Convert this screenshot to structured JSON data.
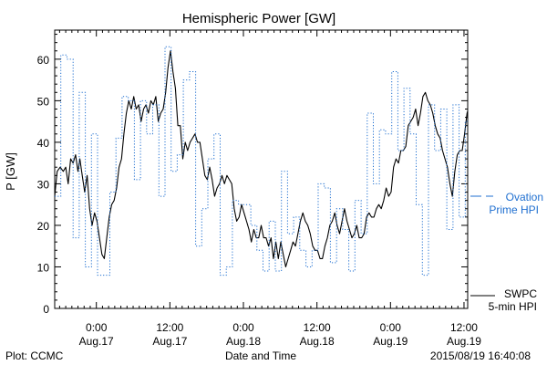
{
  "chart_data": {
    "type": "line",
    "title": "Hemispheric Power [GW]",
    "xlabel": "Date and Time",
    "ylabel": "P [GW]",
    "ylim": [
      0,
      67
    ],
    "xlim": [
      -6.8,
      60.6
    ],
    "x_unit": "hours from 2015/08/17 00:00",
    "grid": false,
    "y_ticks": [
      0,
      10,
      20,
      30,
      40,
      50,
      60
    ],
    "x_ticks": [
      {
        "x": 0,
        "time": "0:00",
        "date": "Aug.17"
      },
      {
        "x": 12,
        "time": "12:00",
        "date": "Aug.17"
      },
      {
        "x": 24,
        "time": "0:00",
        "date": "Aug.18"
      },
      {
        "x": 36,
        "time": "12:00",
        "date": "Aug.18"
      },
      {
        "x": 48,
        "time": "0:00",
        "date": "Aug.19"
      },
      {
        "x": 60,
        "time": "12:00",
        "date": "Aug.19"
      }
    ],
    "series": [
      {
        "name": "SWPC 5-min HPI",
        "label_lines": [
          "SWPC",
          "5-min HPI"
        ],
        "color": "#000000",
        "style": "solid",
        "points": [
          [
            -6.8,
            27
          ],
          [
            -6.4,
            33
          ],
          [
            -5.9,
            34
          ],
          [
            -5.4,
            33
          ],
          [
            -5.0,
            34
          ],
          [
            -4.6,
            30
          ],
          [
            -4.2,
            36
          ],
          [
            -3.8,
            35
          ],
          [
            -3.4,
            37
          ],
          [
            -3.0,
            33
          ],
          [
            -2.7,
            36
          ],
          [
            -2.3,
            32
          ],
          [
            -1.9,
            28
          ],
          [
            -1.5,
            32
          ],
          [
            -1.1,
            24
          ],
          [
            -0.7,
            20
          ],
          [
            -0.3,
            23
          ],
          [
            0.1,
            21
          ],
          [
            0.5,
            17
          ],
          [
            0.9,
            13
          ],
          [
            1.3,
            12
          ],
          [
            1.7,
            17
          ],
          [
            2.1,
            22
          ],
          [
            2.5,
            25
          ],
          [
            2.9,
            26
          ],
          [
            3.3,
            29
          ],
          [
            3.7,
            34
          ],
          [
            4.1,
            36
          ],
          [
            4.5,
            42
          ],
          [
            4.9,
            47
          ],
          [
            5.3,
            50
          ],
          [
            5.7,
            48
          ],
          [
            6.1,
            51
          ],
          [
            6.5,
            48
          ],
          [
            6.9,
            49
          ],
          [
            7.3,
            45
          ],
          [
            7.7,
            48
          ],
          [
            8.1,
            49
          ],
          [
            8.5,
            47
          ],
          [
            8.9,
            50
          ],
          [
            9.3,
            49
          ],
          [
            9.7,
            51
          ],
          [
            10.1,
            45
          ],
          [
            10.5,
            47
          ],
          [
            10.9,
            48
          ],
          [
            11.3,
            52
          ],
          [
            11.7,
            58
          ],
          [
            12.1,
            62
          ],
          [
            12.5,
            57
          ],
          [
            12.9,
            53
          ],
          [
            13.3,
            44
          ],
          [
            13.7,
            44
          ],
          [
            14.1,
            36
          ],
          [
            14.5,
            40
          ],
          [
            14.9,
            38
          ],
          [
            15.3,
            40
          ],
          [
            15.7,
            41
          ],
          [
            16.1,
            42
          ],
          [
            16.5,
            40
          ],
          [
            16.9,
            40
          ],
          [
            17.3,
            36
          ],
          [
            17.7,
            32
          ],
          [
            18.1,
            31
          ],
          [
            18.5,
            34
          ],
          [
            18.9,
            31
          ],
          [
            19.3,
            27
          ],
          [
            19.7,
            29
          ],
          [
            20.1,
            30
          ],
          [
            20.5,
            32
          ],
          [
            20.9,
            30
          ],
          [
            21.3,
            32
          ],
          [
            21.7,
            31
          ],
          [
            22.1,
            30
          ],
          [
            22.5,
            24
          ],
          [
            22.9,
            21
          ],
          [
            23.3,
            22
          ],
          [
            23.7,
            25
          ],
          [
            24.1,
            23
          ],
          [
            24.5,
            21
          ],
          [
            24.9,
            19
          ],
          [
            25.3,
            16
          ],
          [
            25.7,
            19
          ],
          [
            26.1,
            17
          ],
          [
            26.5,
            17
          ],
          [
            26.9,
            20
          ],
          [
            27.3,
            17
          ],
          [
            27.7,
            17
          ],
          [
            28.1,
            15
          ],
          [
            28.5,
            17
          ],
          [
            28.9,
            12
          ],
          [
            29.3,
            16
          ],
          [
            29.7,
            12
          ],
          [
            30.1,
            16
          ],
          [
            30.5,
            13
          ],
          [
            30.9,
            10
          ],
          [
            31.3,
            12
          ],
          [
            31.7,
            14
          ],
          [
            32.1,
            16
          ],
          [
            32.5,
            15
          ],
          [
            32.9,
            18
          ],
          [
            33.3,
            21
          ],
          [
            33.7,
            23
          ],
          [
            34.1,
            21
          ],
          [
            34.5,
            20
          ],
          [
            34.9,
            18
          ],
          [
            35.3,
            15
          ],
          [
            35.7,
            14
          ],
          [
            36.1,
            14
          ],
          [
            36.5,
            12
          ],
          [
            36.9,
            12
          ],
          [
            37.3,
            15
          ],
          [
            37.7,
            17
          ],
          [
            38.1,
            20
          ],
          [
            38.5,
            21
          ],
          [
            38.9,
            23
          ],
          [
            39.3,
            20
          ],
          [
            39.7,
            18
          ],
          [
            40.1,
            21
          ],
          [
            40.5,
            24
          ],
          [
            40.9,
            21
          ],
          [
            41.3,
            19
          ],
          [
            41.7,
            17
          ],
          [
            42.1,
            18
          ],
          [
            42.5,
            20
          ],
          [
            42.9,
            17
          ],
          [
            43.3,
            17
          ],
          [
            43.7,
            18
          ],
          [
            44.1,
            22
          ],
          [
            44.5,
            23
          ],
          [
            44.9,
            22
          ],
          [
            45.3,
            22
          ],
          [
            45.7,
            24
          ],
          [
            46.1,
            25
          ],
          [
            46.5,
            24
          ],
          [
            46.9,
            26
          ],
          [
            47.3,
            29
          ],
          [
            47.7,
            27
          ],
          [
            48.1,
            28
          ],
          [
            48.5,
            34
          ],
          [
            48.9,
            36
          ],
          [
            49.3,
            35
          ],
          [
            49.7,
            38
          ],
          [
            50.1,
            38
          ],
          [
            50.5,
            39
          ],
          [
            50.9,
            44
          ],
          [
            51.3,
            45
          ],
          [
            51.7,
            46
          ],
          [
            52.1,
            48
          ],
          [
            52.5,
            44
          ],
          [
            52.9,
            47
          ],
          [
            53.3,
            51
          ],
          [
            53.7,
            52
          ],
          [
            54.1,
            50
          ],
          [
            54.5,
            49
          ],
          [
            54.9,
            47
          ],
          [
            55.3,
            44
          ],
          [
            55.7,
            42
          ],
          [
            56.1,
            41
          ],
          [
            56.5,
            38
          ],
          [
            56.9,
            36
          ],
          [
            57.3,
            34
          ],
          [
            57.7,
            30
          ],
          [
            58.1,
            27
          ],
          [
            58.5,
            33
          ],
          [
            58.9,
            37
          ],
          [
            59.3,
            38
          ],
          [
            59.7,
            38
          ],
          [
            60.1,
            42
          ],
          [
            60.5,
            47
          ],
          [
            60.9,
            49
          ],
          [
            61.3,
            44
          ],
          [
            61.7,
            47
          ],
          [
            62.1,
            44
          ],
          [
            62.5,
            46
          ]
        ]
      },
      {
        "name": "Ovation Prime HPI",
        "label_lines": [
          "Ovation",
          "Prime HPI"
        ],
        "color": "#1f6fd0",
        "style": "dotted-step",
        "points": [
          [
            -6.8,
            27
          ],
          [
            -5.8,
            61
          ],
          [
            -4.8,
            60
          ],
          [
            -3.8,
            17
          ],
          [
            -2.8,
            52
          ],
          [
            -1.8,
            10
          ],
          [
            -0.8,
            42
          ],
          [
            0.2,
            8
          ],
          [
            1.2,
            8
          ],
          [
            2.2,
            28
          ],
          [
            3.2,
            41
          ],
          [
            4.2,
            51
          ],
          [
            5.2,
            50
          ],
          [
            6.2,
            31
          ],
          [
            7.2,
            50
          ],
          [
            8.2,
            42
          ],
          [
            9.2,
            49
          ],
          [
            10.2,
            27
          ],
          [
            11.2,
            63
          ],
          [
            12.2,
            33
          ],
          [
            13.2,
            37
          ],
          [
            14.2,
            55
          ],
          [
            15.2,
            57
          ],
          [
            16.2,
            15
          ],
          [
            17.2,
            24
          ],
          [
            18.2,
            36
          ],
          [
            19.2,
            42
          ],
          [
            20.2,
            8
          ],
          [
            21.2,
            10
          ],
          [
            22.2,
            26
          ],
          [
            23.2,
            25
          ],
          [
            24.2,
            25
          ],
          [
            25.2,
            20
          ],
          [
            26.2,
            14
          ],
          [
            27.2,
            9
          ],
          [
            28.2,
            21
          ],
          [
            29.2,
            9
          ],
          [
            30.2,
            33
          ],
          [
            31.2,
            18
          ],
          [
            32.2,
            22
          ],
          [
            33.2,
            14
          ],
          [
            34.2,
            10
          ],
          [
            35.2,
            14
          ],
          [
            36.2,
            30
          ],
          [
            37.2,
            29
          ],
          [
            38.2,
            11
          ],
          [
            39.2,
            24
          ],
          [
            40.2,
            19
          ],
          [
            41.2,
            9
          ],
          [
            42.2,
            26
          ],
          [
            43.2,
            18
          ],
          [
            44.2,
            47
          ],
          [
            45.2,
            30
          ],
          [
            46.2,
            43
          ],
          [
            47.2,
            42
          ],
          [
            48.2,
            57
          ],
          [
            49.2,
            38
          ],
          [
            50.2,
            53
          ],
          [
            51.2,
            42
          ],
          [
            52.2,
            25
          ],
          [
            53.2,
            8
          ],
          [
            54.2,
            49
          ],
          [
            55.2,
            38
          ],
          [
            56.2,
            48
          ],
          [
            57.2,
            19
          ],
          [
            58.2,
            49
          ],
          [
            59.2,
            22
          ],
          [
            60.2,
            45
          ],
          [
            61.2,
            45
          ]
        ]
      }
    ]
  },
  "footer": {
    "left": "Plot: CCMC",
    "right": "2015/08/19 16:40:08"
  }
}
